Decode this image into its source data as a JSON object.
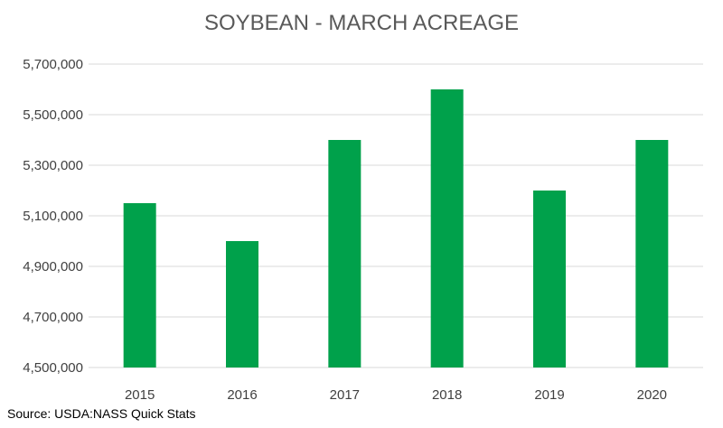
{
  "chart_data": {
    "type": "bar",
    "title": "SOYBEAN - MARCH ACREAGE",
    "xlabel": "",
    "ylabel": "",
    "categories": [
      "2015",
      "2016",
      "2017",
      "2018",
      "2019",
      "2020"
    ],
    "values": [
      5150000,
      5000000,
      5400000,
      5600000,
      5200000,
      5400000
    ],
    "ylim": [
      4500000,
      5700000
    ],
    "y_ticks": [
      4500000,
      4700000,
      4900000,
      5100000,
      5300000,
      5500000,
      5700000
    ],
    "y_tick_labels": [
      "4,500,000",
      "4,700,000",
      "4,900,000",
      "5,100,000",
      "5,300,000",
      "5,500,000",
      "5,700,000"
    ],
    "grid": true,
    "legend": "none",
    "bar_color": "#00a14b"
  },
  "source_note": "Source: USDA:NASS Quick Stats"
}
